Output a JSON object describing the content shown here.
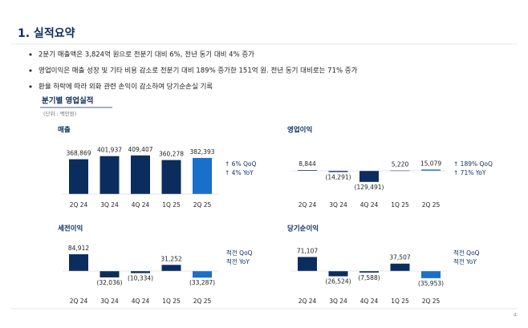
{
  "header": {
    "title": "1. 실적요약"
  },
  "bullets": [
    "2분기 매출액은 3,824억 원으로 전분기 대비 6%, 전년 동기 대비 4% 증가",
    "영업이익은 매출 성장 및 기타 비용 감소로 전분기 대비 189% 증가한 151억 원. 전년 동기 대비로는 71% 증가",
    "환율 하락에 따라 외화 관련 손익이 감소하여 당기순손실 기록"
  ],
  "section": {
    "title": "분기별 영업실적",
    "unit": "(단위 : 백만원)"
  },
  "page_number": "4",
  "chart_data": [
    {
      "type": "bar",
      "title": "매출",
      "categories": [
        "2Q 24",
        "3Q 24",
        "4Q 24",
        "1Q 25",
        "2Q 25"
      ],
      "values": [
        368869,
        401937,
        409407,
        360278,
        382393
      ],
      "value_labels": [
        "368,869",
        "401,937",
        "409,407",
        "360,278",
        "382,393"
      ],
      "colors": [
        "#0b2d5e",
        "#0b2d5e",
        "#0b2d5e",
        "#0b2d5e",
        "#1a6fc9"
      ],
      "ylim": [
        0,
        450000
      ],
      "annotations": [
        "↑ 6% QoQ",
        "↑ 4% YoY"
      ]
    },
    {
      "type": "bar",
      "title": "영업이익",
      "categories": [
        "2Q 24",
        "3Q 24",
        "4Q 24",
        "1Q 25",
        "2Q 25"
      ],
      "values": [
        8844,
        -14291,
        -129491,
        5220,
        15079
      ],
      "value_labels": [
        "8,844",
        "(14,291)",
        "(129,491)",
        "5,220",
        "15,079"
      ],
      "colors": [
        "#0b2d5e",
        "#0b2d5e",
        "#0b2d5e",
        "#0b2d5e",
        "#1a6fc9"
      ],
      "ylim": [
        -300000,
        300000
      ],
      "annotations": [
        "↑ 189% QoQ",
        "↑ 71% YoY"
      ]
    },
    {
      "type": "bar",
      "title": "세전이익",
      "categories": [
        "2Q 24",
        "3Q 24",
        "4Q 24",
        "1Q 25",
        "2Q 25"
      ],
      "values": [
        84912,
        -32036,
        -10334,
        31252,
        -33287
      ],
      "value_labels": [
        "84,912",
        "(32,036)",
        "(10,334)",
        "31,252",
        "(33,287)"
      ],
      "colors": [
        "#0b2d5e",
        "#0b2d5e",
        "#0b2d5e",
        "#0b2d5e",
        "#1a6fc9"
      ],
      "ylim": [
        -150000,
        150000
      ],
      "annotations": [
        "적전 QoQ",
        "적전 YoY"
      ]
    },
    {
      "type": "bar",
      "title": "당기순이익",
      "categories": [
        "2Q 24",
        "3Q 24",
        "4Q 24",
        "1Q 25",
        "2Q 25"
      ],
      "values": [
        71107,
        -26524,
        -7588,
        37507,
        -35953
      ],
      "value_labels": [
        "71,107",
        "(26,524)",
        "(7,588)",
        "37,507",
        "(35,953)"
      ],
      "colors": [
        "#0b2d5e",
        "#0b2d5e",
        "#0b2d5e",
        "#0b2d5e",
        "#1a6fc9"
      ],
      "ylim": [
        -150000,
        150000
      ],
      "annotations": [
        "적전 QoQ",
        "적전 YoY"
      ]
    }
  ]
}
